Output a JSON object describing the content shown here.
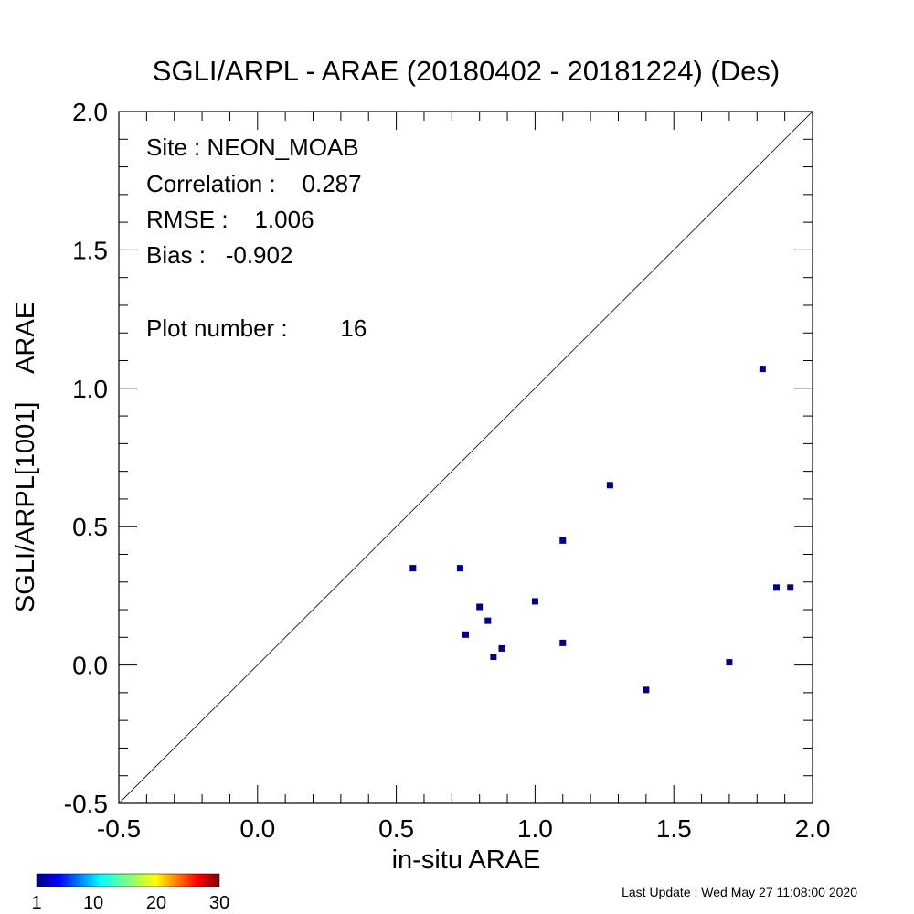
{
  "chart_data": {
    "type": "scatter",
    "title": "SGLI/ARPL - ARAE (20180402 - 20181224) (Des)",
    "xlabel": "in-situ ARAE",
    "ylabel": "SGLI/ARPL[1001]    ARAE",
    "xlim": [
      -0.5,
      2.0
    ],
    "ylim": [
      -0.5,
      2.0
    ],
    "xticks": [
      -0.5,
      0.0,
      0.5,
      1.0,
      1.5,
      2.0
    ],
    "yticks": [
      -0.5,
      0.0,
      0.5,
      1.0,
      1.5,
      2.0
    ],
    "xtick_labels": [
      "-0.5",
      "0.0",
      "0.5",
      "1.0",
      "1.5",
      "2.0"
    ],
    "ytick_labels": [
      "-0.5",
      "0.0",
      "0.5",
      "1.0",
      "1.5",
      "2.0"
    ],
    "grid": false,
    "reference_line": "y = x",
    "point_color": "#000080",
    "points": [
      {
        "x": 0.56,
        "y": 0.35
      },
      {
        "x": 0.73,
        "y": 0.35
      },
      {
        "x": 0.75,
        "y": 0.11
      },
      {
        "x": 0.8,
        "y": 0.21
      },
      {
        "x": 0.83,
        "y": 0.16
      },
      {
        "x": 0.85,
        "y": 0.03
      },
      {
        "x": 0.88,
        "y": 0.06
      },
      {
        "x": 1.0,
        "y": 0.23
      },
      {
        "x": 1.1,
        "y": 0.45
      },
      {
        "x": 1.1,
        "y": 0.08
      },
      {
        "x": 1.27,
        "y": 0.65
      },
      {
        "x": 1.4,
        "y": -0.09
      },
      {
        "x": 1.7,
        "y": 0.01
      },
      {
        "x": 1.82,
        "y": 1.07
      },
      {
        "x": 1.87,
        "y": 0.28
      },
      {
        "x": 1.92,
        "y": 0.28
      }
    ],
    "annotations": {
      "site": "Site : NEON_MOAB",
      "correlation": "Correlation :    0.287",
      "rmse": "RMSE :    1.006",
      "bias": "Bias :   -0.902",
      "plot_number": "Plot number :        16"
    },
    "colorbar": {
      "tick_labels": [
        "1",
        "10",
        "20",
        "30"
      ],
      "values": [
        1,
        10,
        20,
        30
      ],
      "colormap": "jet"
    }
  },
  "footer": {
    "last_update": "Last Update : Wed May 27 11:08:00 2020"
  }
}
